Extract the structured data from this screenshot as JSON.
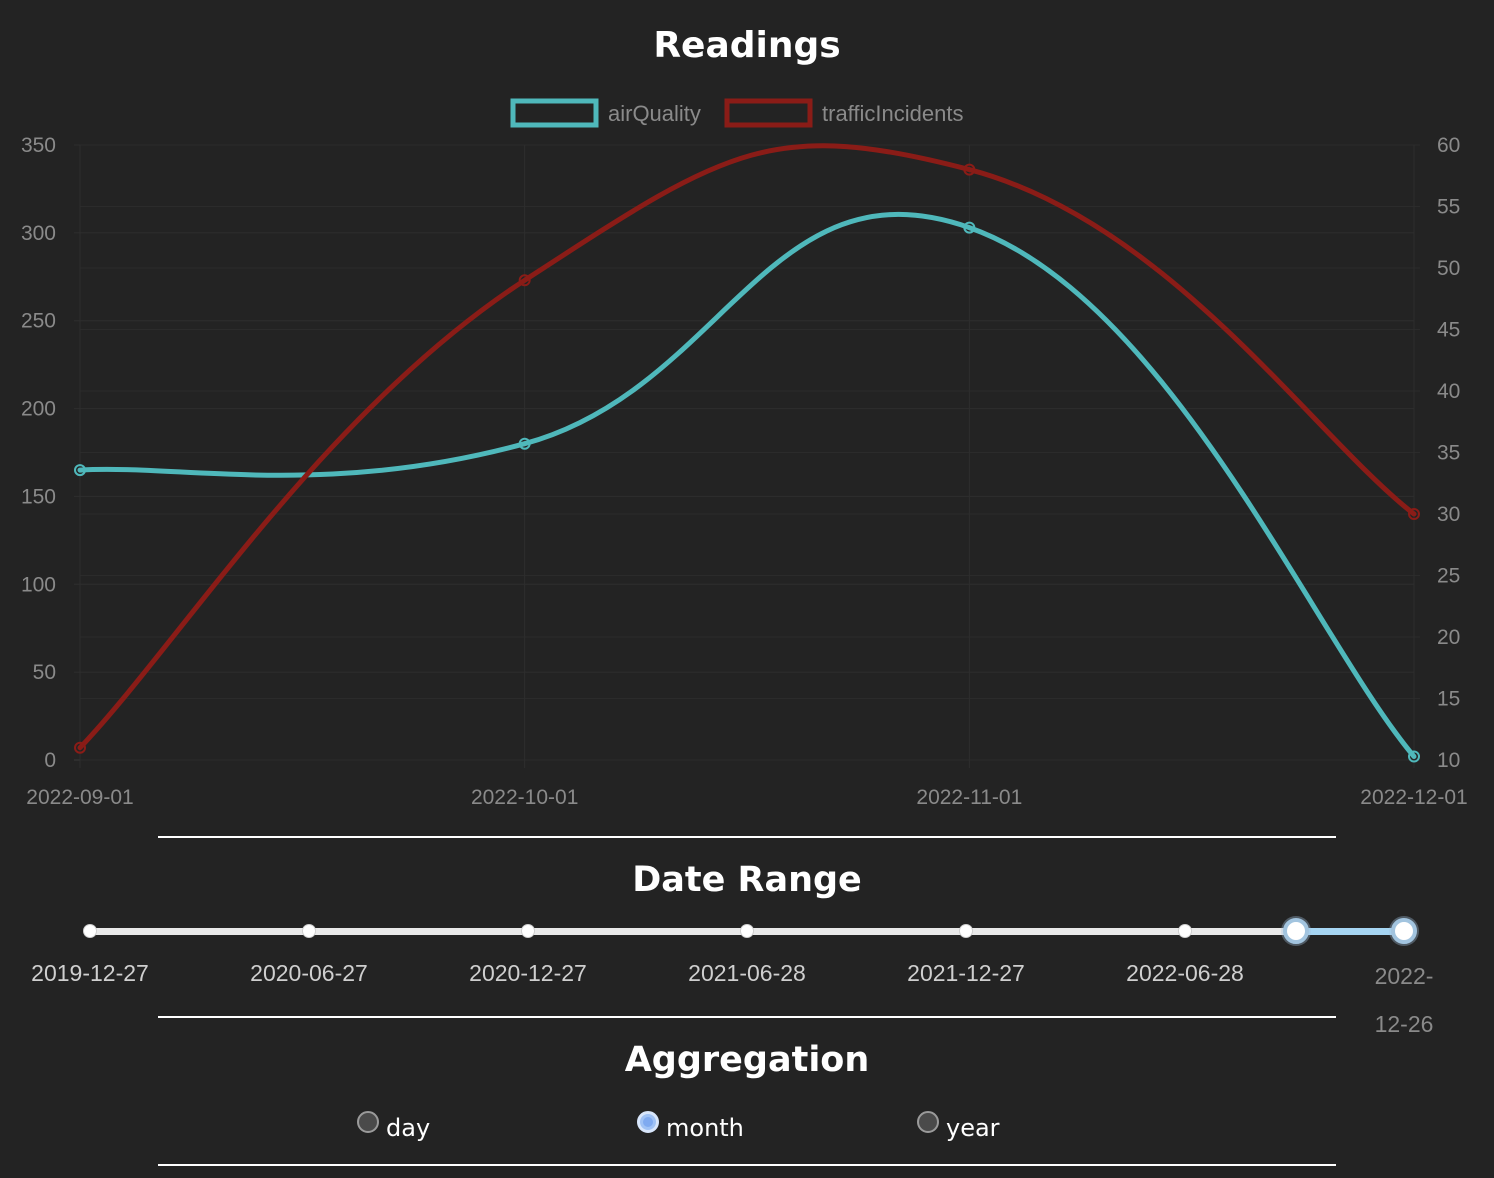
{
  "chart_data": {
    "type": "line",
    "title": "Readings",
    "x": [
      "2022-09-01",
      "2022-10-01",
      "2022-11-01",
      "2022-12-01"
    ],
    "series": [
      {
        "name": "airQuality",
        "axis": "y_left",
        "color": "#4fb8bb",
        "values": [
          165,
          180,
          303,
          2
        ]
      },
      {
        "name": "trafficIncidents",
        "axis": "y_right",
        "color": "#8a1c17",
        "values": [
          11,
          49,
          58,
          30
        ]
      }
    ],
    "y_left": {
      "range": [
        0,
        350
      ],
      "ticks": [
        "0",
        "50",
        "100",
        "150",
        "200",
        "250",
        "300",
        "350"
      ]
    },
    "y_right": {
      "range": [
        10,
        60
      ],
      "ticks": [
        "10",
        "15",
        "20",
        "25",
        "30",
        "35",
        "40",
        "45",
        "50",
        "55",
        "60"
      ]
    },
    "x_ticks": [
      "2022-09-01",
      "2022-10-01",
      "2022-11-01",
      "2022-12-01"
    ],
    "legend": "top-center",
    "grid": true,
    "curve": "smooth"
  },
  "date_range": {
    "title": "Date Range",
    "labels": [
      "2019-12-27",
      "2020-06-27",
      "2020-12-27",
      "2021-06-28",
      "2021-12-27",
      "2022-06-28",
      "2022-12-26"
    ],
    "selected_start_fraction": 0.918,
    "selected_end_fraction": 1.0,
    "accent": "#a6d5f2"
  },
  "aggregation": {
    "title": "Aggregation",
    "options": [
      {
        "label": "day",
        "checked": false
      },
      {
        "label": "month",
        "checked": true
      },
      {
        "label": "year",
        "checked": false
      }
    ]
  }
}
